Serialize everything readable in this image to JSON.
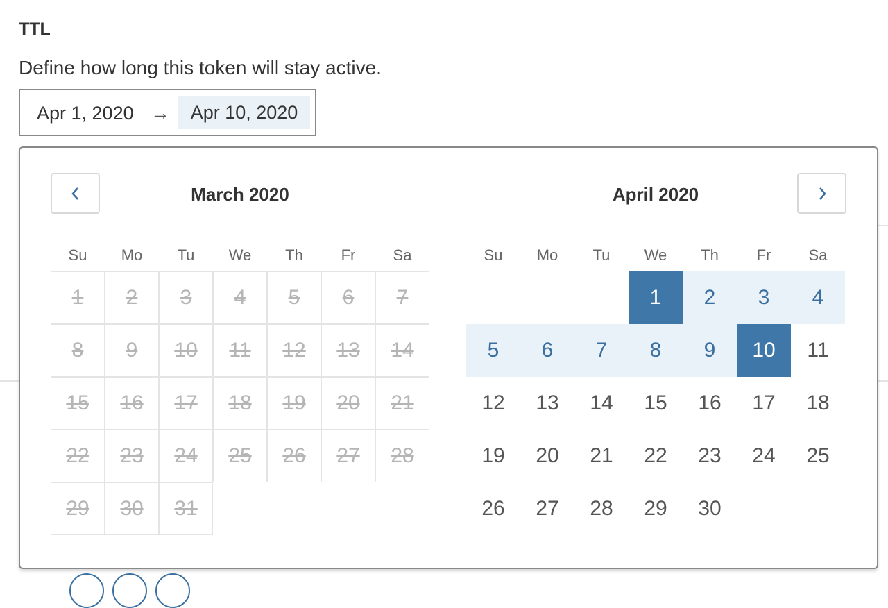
{
  "ttl": {
    "title": "TTL",
    "description": "Define how long this token will stay active.",
    "start_date": "Apr 1, 2020",
    "arrow": "→",
    "end_date": "Apr 10, 2020"
  },
  "calendar": {
    "prev_icon": "chevron-left-icon",
    "next_icon": "chevron-right-icon",
    "weekdays": [
      "Su",
      "Mo",
      "Tu",
      "We",
      "Th",
      "Fr",
      "Sa"
    ],
    "colors": {
      "selected": "#3f77a9",
      "range": "#eaf2f9",
      "accent_text": "#3a6f9f"
    },
    "months": [
      {
        "title": "March 2020",
        "start_weekday": 0,
        "days": 31,
        "disabled_all": true
      },
      {
        "title": "April 2020",
        "start_weekday": 3,
        "days": 30,
        "range_start": 1,
        "range_end": 10
      }
    ]
  }
}
